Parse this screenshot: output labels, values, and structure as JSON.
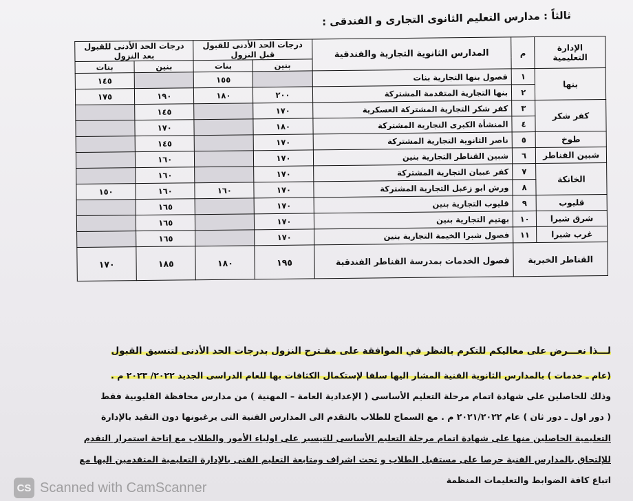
{
  "title": "ثالثاً : مدارس التعليم الثانوى التجارى و الفندقى :",
  "table": {
    "headers": {
      "admin": "الإدارة التعليمية",
      "num": "م",
      "school": "المدارس الثانوية التجارية والفندقية",
      "before": "درجات الحد الأدنى للقبول قبل النزول",
      "after": "درجات الحد الأدنى للقبول بعد النزول",
      "boys": "بنين",
      "girls": "بنات"
    },
    "admins": [
      "بنها",
      "كفر شكر",
      "طوخ",
      "شبين القناطر",
      "الخانكة",
      "قليوب",
      "شرق شبرا",
      "غرب شبرا"
    ],
    "rows": [
      {
        "num": "١",
        "school": "فصول بنها التجارية بنات",
        "vals": [
          "",
          "١٥٥",
          "",
          "١٤٥"
        ]
      },
      {
        "num": "٢",
        "school": "بنها التجارية المتقدمة المشتركة",
        "vals": [
          "٢٠٠",
          "١٨٠",
          "١٩٠",
          "١٧٥"
        ]
      },
      {
        "num": "٣",
        "school": "كفر شكر التجارية المشتركة العسكرية",
        "vals": [
          "١٧٠",
          "",
          "١٤٥",
          ""
        ]
      },
      {
        "num": "٤",
        "school": "المنشأة الكبرى التجارية المشتركة",
        "vals": [
          "١٨٠",
          "",
          "١٧٠",
          ""
        ]
      },
      {
        "num": "٥",
        "school": "ناصر الثانوية التجارية المشتركة",
        "vals": [
          "١٧٠",
          "",
          "١٤٥",
          ""
        ]
      },
      {
        "num": "٦",
        "school": "شبين القناطر التجارية بنين",
        "vals": [
          "١٧٠",
          "",
          "١٦٠",
          ""
        ]
      },
      {
        "num": "٧",
        "school": "كفر عبيان التجارية المشتركة",
        "vals": [
          "١٧٠",
          "",
          "١٦٠",
          ""
        ]
      },
      {
        "num": "٨",
        "school": "ورش ابو زعبل التجارية المشتركة",
        "vals": [
          "١٧٠",
          "١٦٠",
          "١٦٠",
          "١٥٠"
        ]
      },
      {
        "num": "٩",
        "school": "قليوب التجارية بنين",
        "vals": [
          "١٧٠",
          "",
          "١٦٥",
          ""
        ]
      },
      {
        "num": "١٠",
        "school": "بهتيم التجارية بنين",
        "vals": [
          "١٧٠",
          "",
          "١٦٥",
          ""
        ]
      },
      {
        "num": "١١",
        "school": "فصول شبرا الخيمة التجارية بنين",
        "vals": [
          "١٧٠",
          "",
          "١٦٥",
          ""
        ]
      }
    ],
    "last": {
      "admin": "القناطر الخيرية",
      "school": "فصول الخدمات بمدرسة القناطر الفندقية",
      "vals": [
        "١٩٥",
        "١٨٠",
        "١٨٥",
        "١٧٠"
      ]
    }
  },
  "paragraph": [
    "لـــذا نعـــرض على معاليكم للتكرم بالنظر في الموافقة على مقـترح النزول بدرجات الحد الأدنى لتنسيق القبول",
    "(عام ـ خدمات ) بالمدارس الثانوية الفنية المشار اليها سلفا لإستكمال الكثافات بها للعام الدراسى الجديد ٢٠٢٢/ ٢٠٢٣ م .",
    "وذلك للحاصلين على شهادة اتمام مرحلة التعليم الأساسى ( الإعدادية العامة – المهنية ) من مدارس محافظة القليوبية فقط",
    "( دور اول ـ دور ثان ) عام ٢٠٢١/٢٠٢٢ م . مع السماح للطلاب بالتقدم الى المدارس الفنية التى يرغبونها دون التقيد بالإدارة",
    "التعليمية الحاصلين منها على شهادة اتمام مرحلة التعليم الأساسى للتيسير على اولياء الأمور والطلاب مع إتاحة استمرار التقدم",
    "للإلتحاق بالمدارس الفنية حرصا على مستقبل الطلاب و تحت اشراف ومتابعة التعليم الفنى بالإدارة التعليمية المتقدمين اليها مع",
    "اتباع كافة الضوابط والتعليمات المنظمة"
  ],
  "watermark": {
    "logo": "CS",
    "text": "Scanned with CamScanner"
  },
  "colors": {
    "highlight": "#f2ef6a",
    "empty_cell": "#d8d6dc"
  }
}
